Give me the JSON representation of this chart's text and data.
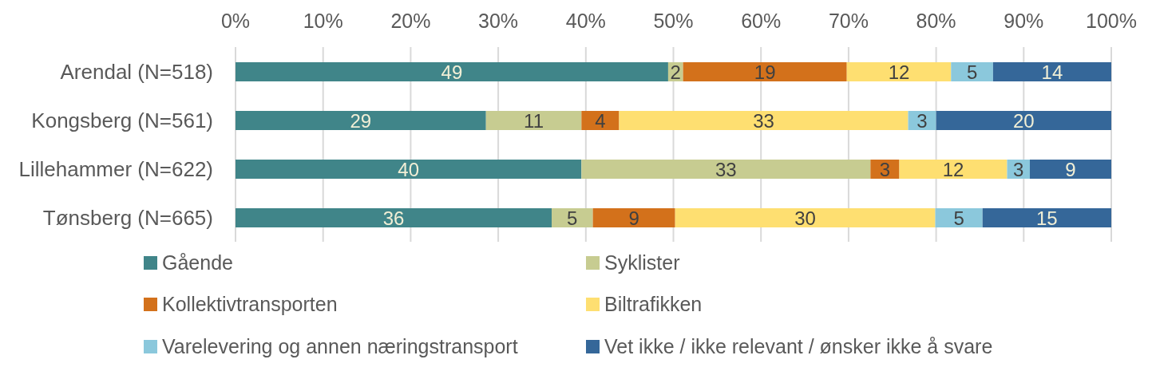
{
  "chart_data": {
    "type": "bar",
    "orientation": "horizontal",
    "stacked": true,
    "categories": [
      "Arendal (N=518)",
      "Kongsberg (N=561)",
      "Lillehammer (N=622)",
      "Tønsberg (N=665)"
    ],
    "series": [
      {
        "name": "Gående",
        "color": "#408589",
        "values": [
          49.4,
          28.6,
          39.5,
          36.1
        ],
        "value_labels": [
          "49",
          "29",
          "40",
          "36"
        ]
      },
      {
        "name": "Syklister",
        "color": "#c7cc91",
        "values": [
          1.7,
          10.9,
          33.0,
          4.7
        ],
        "value_labels": [
          "2",
          "11",
          "33",
          "5"
        ]
      },
      {
        "name": "Kollektivtransporten",
        "color": "#d3711b",
        "values": [
          18.7,
          4.3,
          3.3,
          9.4
        ],
        "value_labels": [
          "19",
          "4",
          "3",
          "9"
        ]
      },
      {
        "name": "Biltrafikken",
        "color": "#fedf71",
        "values": [
          11.9,
          33.0,
          12.3,
          29.7
        ],
        "value_labels": [
          "12",
          "33",
          "12",
          "30"
        ]
      },
      {
        "name": "Varelevering og annen næringstransport",
        "color": "#8bc8dc",
        "values": [
          4.8,
          3.2,
          2.6,
          5.4
        ],
        "value_labels": [
          "5",
          "3",
          "3",
          "5"
        ]
      },
      {
        "name": "Vet ikke / ikke relevant / ønsker ikke å svare",
        "color": "#356799",
        "values": [
          13.5,
          20.0,
          9.3,
          14.7
        ],
        "value_labels": [
          "14",
          "20",
          "9",
          "15"
        ]
      }
    ],
    "xlim": [
      0,
      100
    ],
    "xticks": [
      {
        "value": 0,
        "label": "0%"
      },
      {
        "value": 10,
        "label": "10%"
      },
      {
        "value": 20,
        "label": "20%"
      },
      {
        "value": 30,
        "label": "30%"
      },
      {
        "value": 40,
        "label": "40%"
      },
      {
        "value": 50,
        "label": "50%"
      },
      {
        "value": 60,
        "label": "60%"
      },
      {
        "value": 70,
        "label": "70%"
      },
      {
        "value": 80,
        "label": "80%"
      },
      {
        "value": 90,
        "label": "90%"
      },
      {
        "value": 100,
        "label": "100%"
      }
    ],
    "grid": "x",
    "legend": "bottom"
  }
}
